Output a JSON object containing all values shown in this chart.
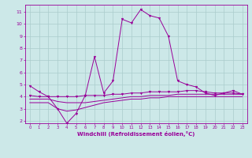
{
  "xlabel": "Windchill (Refroidissement éolien,°C)",
  "background_color": "#cce8e8",
  "grid_color": "#aacccc",
  "line_color": "#990099",
  "xlim": [
    -0.5,
    23.5
  ],
  "ylim": [
    1.8,
    11.6
  ],
  "xticks": [
    0,
    1,
    2,
    3,
    4,
    5,
    6,
    7,
    8,
    9,
    10,
    11,
    12,
    13,
    14,
    15,
    16,
    17,
    18,
    19,
    20,
    21,
    22,
    23
  ],
  "yticks": [
    2,
    3,
    4,
    5,
    6,
    7,
    8,
    9,
    10,
    11
  ],
  "series1_x": [
    0,
    1,
    2,
    3,
    4,
    5,
    6,
    7,
    8,
    9,
    10,
    11,
    12,
    13,
    14,
    15,
    16,
    17,
    18,
    19,
    20,
    21,
    22,
    23
  ],
  "series1_y": [
    4.9,
    4.4,
    4.0,
    3.0,
    1.8,
    2.6,
    4.1,
    7.3,
    4.3,
    5.3,
    10.4,
    10.1,
    11.2,
    10.7,
    10.5,
    9.0,
    5.3,
    5.0,
    4.8,
    4.3,
    4.1,
    4.3,
    4.5,
    4.2
  ],
  "series2_x": [
    0,
    1,
    2,
    3,
    4,
    5,
    6,
    7,
    8,
    9,
    10,
    11,
    12,
    13,
    14,
    15,
    16,
    17,
    18,
    19,
    20,
    21,
    22,
    23
  ],
  "series2_y": [
    4.1,
    4.0,
    4.0,
    4.0,
    4.0,
    4.0,
    4.1,
    4.1,
    4.1,
    4.2,
    4.2,
    4.3,
    4.3,
    4.4,
    4.4,
    4.4,
    4.4,
    4.5,
    4.5,
    4.4,
    4.3,
    4.3,
    4.3,
    4.2
  ],
  "series3_x": [
    0,
    1,
    2,
    3,
    4,
    5,
    6,
    7,
    8,
    9,
    10,
    11,
    12,
    13,
    14,
    15,
    16,
    17,
    18,
    19,
    20,
    21,
    22,
    23
  ],
  "series3_y": [
    3.8,
    3.8,
    3.8,
    3.6,
    3.5,
    3.5,
    3.5,
    3.6,
    3.7,
    3.8,
    3.9,
    4.0,
    4.0,
    4.1,
    4.1,
    4.1,
    4.2,
    4.2,
    4.2,
    4.2,
    4.2,
    4.2,
    4.2,
    4.2
  ],
  "series4_x": [
    0,
    1,
    2,
    3,
    4,
    5,
    6,
    7,
    8,
    9,
    10,
    11,
    12,
    13,
    14,
    15,
    16,
    17,
    18,
    19,
    20,
    21,
    22,
    23
  ],
  "series4_y": [
    3.5,
    3.5,
    3.5,
    3.0,
    2.8,
    2.9,
    3.1,
    3.3,
    3.5,
    3.6,
    3.7,
    3.8,
    3.8,
    3.9,
    3.9,
    4.0,
    4.0,
    4.0,
    4.0,
    4.0,
    4.0,
    4.0,
    4.0,
    4.0
  ]
}
